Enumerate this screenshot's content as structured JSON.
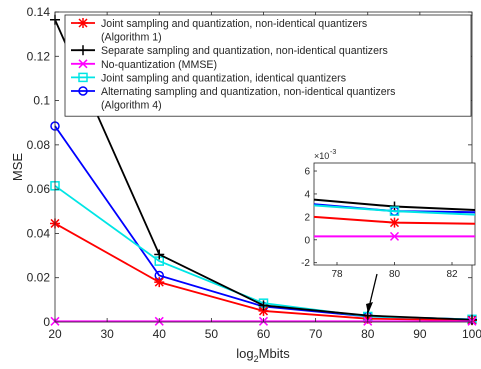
{
  "chart_data": {
    "type": "line",
    "xlabel": "log",
    "xlabel_sub": "2",
    "xlabel_tail": "Mbits",
    "ylabel": "MSE",
    "xlim": [
      20,
      100
    ],
    "ylim": [
      0,
      0.14
    ],
    "xticks": [
      "20",
      "30",
      "40",
      "50",
      "60",
      "70",
      "80",
      "90",
      "100"
    ],
    "yticks": [
      "0",
      "0.02",
      "0.04",
      "0.06",
      "0.08",
      "0.1",
      "0.12",
      "0.14"
    ],
    "x": [
      20,
      40,
      60,
      80,
      100
    ],
    "legend_position": "top-right",
    "series": [
      {
        "name": "Joint sampling and quantization, non-identical quantizers (Algorithm 1)",
        "color": "#ff0000",
        "marker": "asterisk",
        "values": [
          0.0445,
          0.018,
          0.005,
          0.0015,
          0.0008
        ]
      },
      {
        "name": "Separate sampling and quantization, non-identical quantizers",
        "color": "#000000",
        "marker": "plus",
        "values": [
          0.1365,
          0.0305,
          0.0075,
          0.0029,
          0.001
        ]
      },
      {
        "name": "No-quantization (MMSE)",
        "color": "#ff00ff",
        "marker": "x",
        "values": [
          0.0003,
          0.0003,
          0.0003,
          0.0003,
          0.0003
        ]
      },
      {
        "name": "Joint sampling and quantization, identical quantizers",
        "color": "#00e5e5",
        "marker": "square",
        "values": [
          0.0615,
          0.0275,
          0.0085,
          0.0025,
          0.0012
        ]
      },
      {
        "name": "Alternating sampling and quantization, non-identical quantizers (Algorithm 4)",
        "color": "#0000ff",
        "marker": "circle",
        "values": [
          0.0885,
          0.021,
          0.007,
          0.0025,
          0.0012
        ]
      }
    ],
    "inset": {
      "exponent_label": "×10",
      "exponent": "-3",
      "xlim": [
        77.2,
        82.8
      ],
      "ylim": [
        -2.2,
        6.7
      ],
      "xticks": [
        "78",
        "80",
        "82"
      ],
      "xtick_values": [
        78,
        80,
        82
      ],
      "yticks": [
        "-2",
        "0",
        "2",
        "4",
        "6"
      ],
      "ytick_values": [
        -2,
        0,
        2,
        4,
        6
      ],
      "series": [
        {
          "color": "#000000",
          "values_at": [
            [
              77.2,
              3.5
            ],
            [
              80,
              2.9
            ],
            [
              82.8,
              2.6
            ]
          ],
          "marker_at": 80,
          "marker": "plus"
        },
        {
          "color": "#0000ff",
          "values_at": [
            [
              77.2,
              3.1
            ],
            [
              80,
              2.5
            ],
            [
              82.8,
              2.4
            ]
          ],
          "marker_at": 80,
          "marker": "circle"
        },
        {
          "color": "#00e5e5",
          "values_at": [
            [
              77.2,
              3.0
            ],
            [
              80,
              2.5
            ],
            [
              82.8,
              2.2
            ]
          ],
          "marker_at": 80,
          "marker": "square"
        },
        {
          "color": "#ff0000",
          "values_at": [
            [
              77.2,
              2.0
            ],
            [
              80,
              1.5
            ],
            [
              82.8,
              1.4
            ]
          ],
          "marker_at": 80,
          "marker": "asterisk"
        },
        {
          "color": "#ff00ff",
          "values_at": [
            [
              77.2,
              0.3
            ],
            [
              80,
              0.3
            ],
            [
              82.8,
              0.3
            ]
          ],
          "marker_at": 80,
          "marker": "x"
        }
      ]
    }
  }
}
